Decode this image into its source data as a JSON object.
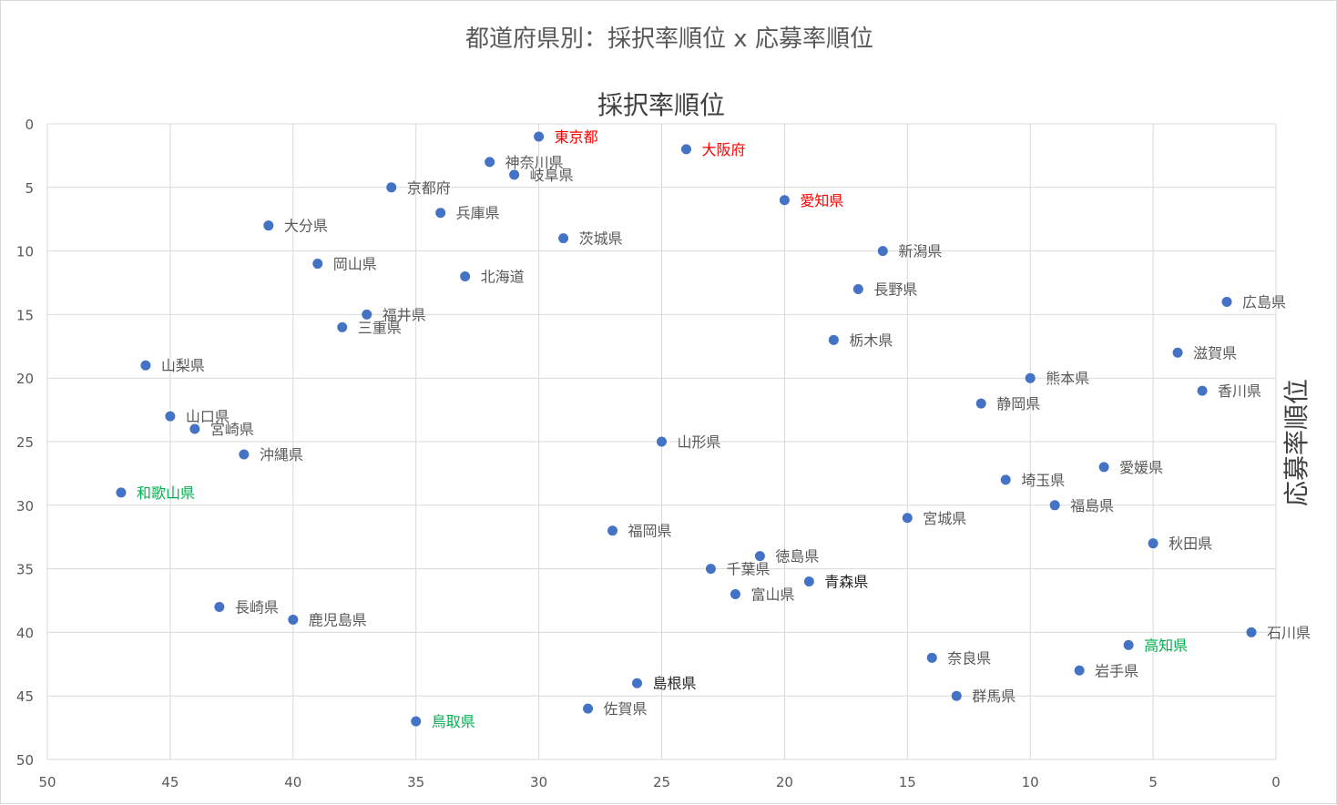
{
  "chart_data": {
    "type": "scatter",
    "title": "都道府県別：採択率順位 x 応募率順位",
    "xlabel": "採択率順位",
    "ylabel": "応募率順位",
    "xlim": [
      50,
      0
    ],
    "ylim": [
      0,
      50
    ],
    "x_reversed": true,
    "y_reversed": true,
    "x_ticks": [
      50,
      45,
      40,
      35,
      30,
      25,
      20,
      15,
      10,
      5,
      0
    ],
    "y_ticks": [
      0,
      5,
      10,
      15,
      20,
      25,
      30,
      35,
      40,
      45,
      50
    ],
    "grid": true,
    "marker_color": "#4472c4",
    "colors": {
      "default": "#595959",
      "red": "#ff0000",
      "green": "#00b050",
      "dark": "#262626"
    },
    "points": [
      {
        "label": "東京都",
        "x": 30,
        "y": 1,
        "color": "red"
      },
      {
        "label": "大阪府",
        "x": 24,
        "y": 2,
        "color": "red"
      },
      {
        "label": "神奈川県",
        "x": 32,
        "y": 3
      },
      {
        "label": "岐阜県",
        "x": 31,
        "y": 4
      },
      {
        "label": "京都府",
        "x": 36,
        "y": 5
      },
      {
        "label": "愛知県",
        "x": 20,
        "y": 6,
        "color": "red"
      },
      {
        "label": "兵庫県",
        "x": 34,
        "y": 7
      },
      {
        "label": "大分県",
        "x": 41,
        "y": 8
      },
      {
        "label": "茨城県",
        "x": 29,
        "y": 9
      },
      {
        "label": "新潟県",
        "x": 16,
        "y": 10
      },
      {
        "label": "岡山県",
        "x": 39,
        "y": 11
      },
      {
        "label": "北海道",
        "x": 33,
        "y": 12
      },
      {
        "label": "長野県",
        "x": 17,
        "y": 13
      },
      {
        "label": "広島県",
        "x": 2,
        "y": 14
      },
      {
        "label": "福井県",
        "x": 37,
        "y": 15
      },
      {
        "label": "三重県",
        "x": 38,
        "y": 16
      },
      {
        "label": "栃木県",
        "x": 18,
        "y": 17
      },
      {
        "label": "滋賀県",
        "x": 4,
        "y": 18
      },
      {
        "label": "山梨県",
        "x": 46,
        "y": 19
      },
      {
        "label": "熊本県",
        "x": 10,
        "y": 20
      },
      {
        "label": "香川県",
        "x": 3,
        "y": 21
      },
      {
        "label": "静岡県",
        "x": 12,
        "y": 22
      },
      {
        "label": "山口県",
        "x": 45,
        "y": 23
      },
      {
        "label": "宮崎県",
        "x": 44,
        "y": 24
      },
      {
        "label": "山形県",
        "x": 25,
        "y": 25
      },
      {
        "label": "沖縄県",
        "x": 42,
        "y": 26
      },
      {
        "label": "愛媛県",
        "x": 7,
        "y": 27
      },
      {
        "label": "埼玉県",
        "x": 11,
        "y": 28
      },
      {
        "label": "和歌山県",
        "x": 47,
        "y": 29,
        "color": "green"
      },
      {
        "label": "福島県",
        "x": 9,
        "y": 30
      },
      {
        "label": "宮城県",
        "x": 15,
        "y": 31
      },
      {
        "label": "福岡県",
        "x": 27,
        "y": 32
      },
      {
        "label": "秋田県",
        "x": 5,
        "y": 33
      },
      {
        "label": "徳島県",
        "x": 21,
        "y": 34
      },
      {
        "label": "千葉県",
        "x": 23,
        "y": 35
      },
      {
        "label": "青森県",
        "x": 19,
        "y": 36,
        "color": "dark"
      },
      {
        "label": "富山県",
        "x": 22,
        "y": 37
      },
      {
        "label": "長崎県",
        "x": 43,
        "y": 38
      },
      {
        "label": "鹿児島県",
        "x": 40,
        "y": 39
      },
      {
        "label": "石川県",
        "x": 1,
        "y": 40
      },
      {
        "label": "高知県",
        "x": 6,
        "y": 41,
        "color": "green"
      },
      {
        "label": "奈良県",
        "x": 14,
        "y": 42
      },
      {
        "label": "岩手県",
        "x": 8,
        "y": 43
      },
      {
        "label": "島根県",
        "x": 26,
        "y": 44,
        "color": "dark"
      },
      {
        "label": "群馬県",
        "x": 13,
        "y": 45
      },
      {
        "label": "佐賀県",
        "x": 28,
        "y": 46
      },
      {
        "label": "鳥取県",
        "x": 35,
        "y": 47,
        "color": "green"
      }
    ]
  }
}
